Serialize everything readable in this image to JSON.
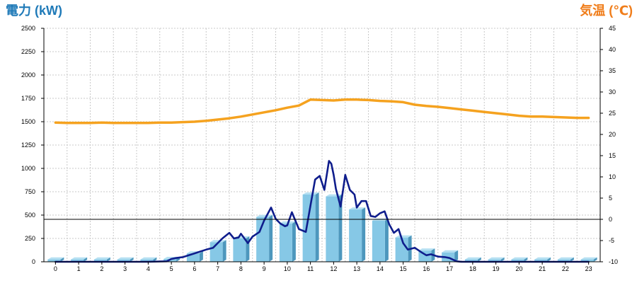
{
  "chart_data": {
    "type": "bar+line",
    "title_left": "電力 (kW)",
    "title_right": "気温 (℃)",
    "categories": [
      "0",
      "1",
      "2",
      "3",
      "4",
      "5",
      "6",
      "7",
      "8",
      "9",
      "10",
      "11",
      "12",
      "13",
      "14",
      "15",
      "16",
      "17",
      "18",
      "19",
      "20",
      "21",
      "22",
      "23"
    ],
    "ylim_left": [
      0,
      2500
    ],
    "yticks_left": [
      "0",
      "250",
      "500",
      "750",
      "1000",
      "1250",
      "1500",
      "1750",
      "2000",
      "2250",
      "2500"
    ],
    "ylim_right": [
      -10,
      45
    ],
    "yticks_right": [
      "-10",
      "-5",
      "0",
      "5",
      "10",
      "15",
      "20",
      "25",
      "30",
      "35",
      "40",
      "45"
    ],
    "grid": true,
    "reference_line": {
      "axis": "right",
      "value": 0
    },
    "colors": {
      "title_left": "#1f7ab8",
      "title_right": "#f07d1a",
      "bar_front": "#86c8e6",
      "bar_side": "#4d97bd",
      "bar_top": "#b6e0f2",
      "power_line": "#0f1d8c",
      "temperature_line": "#f5a21f"
    },
    "series": [
      {
        "kind": "bar",
        "axis": "left",
        "values": [
          25,
          25,
          25,
          25,
          25,
          30,
          90,
          210,
          250,
          480,
          410,
          720,
          700,
          560,
          440,
          260,
          120,
          100,
          25,
          25,
          25,
          25,
          25,
          25
        ]
      },
      {
        "kind": "line",
        "axis": "left",
        "x": [
          0,
          1,
          2,
          3,
          4,
          4.8,
          5,
          5.2,
          5.5,
          6,
          6.5,
          6.8,
          7,
          7.2,
          7.5,
          7.7,
          7.9,
          8,
          8.3,
          8.5,
          8.8,
          9,
          9.3,
          9.5,
          9.7,
          9.9,
          10,
          10.2,
          10.5,
          10.8,
          11,
          11.2,
          11.4,
          11.6,
          11.8,
          11.9,
          12,
          12.1,
          12.3,
          12.5,
          12.7,
          12.9,
          13,
          13.2,
          13.4,
          13.6,
          13.8,
          14,
          14.2,
          14.4,
          14.6,
          14.8,
          15,
          15.2,
          15.5,
          15.8,
          16,
          16.2,
          16.5,
          16.8,
          17,
          17.3,
          17.5,
          18,
          19,
          20,
          21,
          22,
          23
        ],
        "values": [
          0,
          0,
          0,
          0,
          0,
          5,
          30,
          40,
          50,
          90,
          130,
          150,
          200,
          250,
          310,
          250,
          260,
          300,
          200,
          270,
          320,
          440,
          580,
          460,
          410,
          380,
          390,
          530,
          350,
          320,
          600,
          880,
          920,
          770,
          1080,
          1050,
          930,
          780,
          590,
          930,
          770,
          720,
          580,
          650,
          650,
          490,
          480,
          520,
          540,
          400,
          310,
          350,
          200,
          130,
          150,
          100,
          70,
          80,
          55,
          50,
          40,
          5,
          0,
          0,
          0,
          0,
          0,
          0,
          0
        ]
      },
      {
        "kind": "line",
        "axis": "right",
        "x": [
          0,
          0.5,
          1,
          1.5,
          2,
          2.5,
          3,
          3.5,
          4,
          4.5,
          5,
          5.5,
          6,
          6.5,
          7,
          7.5,
          8,
          8.5,
          9,
          9.5,
          10,
          10.5,
          11,
          11.5,
          12,
          12.5,
          13,
          13.5,
          14,
          14.5,
          15,
          15.5,
          16,
          16.5,
          17,
          17.5,
          18,
          18.5,
          19,
          19.5,
          20,
          20.5,
          21,
          21.5,
          22,
          22.5,
          23
        ],
        "values": [
          22.8,
          22.7,
          22.7,
          22.7,
          22.8,
          22.7,
          22.7,
          22.7,
          22.7,
          22.8,
          22.8,
          22.9,
          23.0,
          23.2,
          23.5,
          23.8,
          24.2,
          24.7,
          25.2,
          25.7,
          26.3,
          26.8,
          28.2,
          28.1,
          28.0,
          28.2,
          28.2,
          28.1,
          27.9,
          27.8,
          27.6,
          27.0,
          26.7,
          26.5,
          26.2,
          25.9,
          25.6,
          25.3,
          25.0,
          24.7,
          24.4,
          24.2,
          24.2,
          24.1,
          24.0,
          23.9,
          23.9
        ]
      }
    ]
  }
}
